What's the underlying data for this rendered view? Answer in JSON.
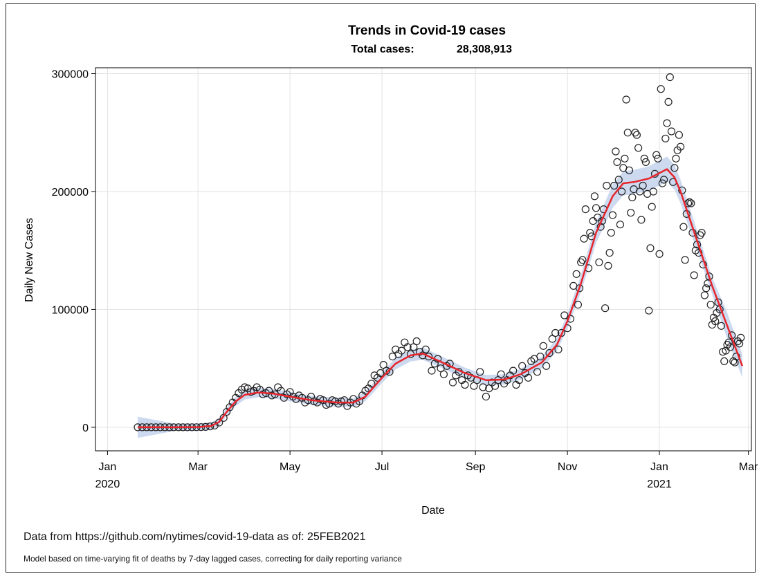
{
  "chart_data": {
    "type": "scatter",
    "title": "Trends in Covid-19 cases",
    "subtitle_label": "Total cases:",
    "subtitle_value": "28,308,913",
    "xlabel": "Date",
    "ylabel": "Daily New Cases",
    "x_ticks": [
      {
        "date": "2020-01-01",
        "label1": "Jan",
        "label2": "2020"
      },
      {
        "date": "2020-03-01",
        "label1": "Mar",
        "label2": ""
      },
      {
        "date": "2020-05-01",
        "label1": "May",
        "label2": ""
      },
      {
        "date": "2020-07-01",
        "label1": "Jul",
        "label2": ""
      },
      {
        "date": "2020-09-01",
        "label1": "Sep",
        "label2": ""
      },
      {
        "date": "2020-11-01",
        "label1": "Nov",
        "label2": ""
      },
      {
        "date": "2021-01-01",
        "label1": "Jan",
        "label2": "2021"
      },
      {
        "date": "2021-03-01",
        "label1": "Mar",
        "label2": ""
      }
    ],
    "y_ticks": [
      0,
      100000,
      200000,
      300000
    ],
    "xlim": [
      "2019-12-24",
      "2021-03-03"
    ],
    "ylim": [
      -20000,
      305000
    ],
    "grid": true,
    "points": [
      [
        "2020-01-21",
        0
      ],
      [
        "2020-01-24",
        0
      ],
      [
        "2020-01-27",
        0
      ],
      [
        "2020-01-30",
        0
      ],
      [
        "2020-02-02",
        0
      ],
      [
        "2020-02-05",
        0
      ],
      [
        "2020-02-08",
        0
      ],
      [
        "2020-02-11",
        0
      ],
      [
        "2020-02-14",
        0
      ],
      [
        "2020-02-17",
        0
      ],
      [
        "2020-02-20",
        0
      ],
      [
        "2020-02-23",
        0
      ],
      [
        "2020-02-26",
        0
      ],
      [
        "2020-02-29",
        50
      ],
      [
        "2020-03-03",
        100
      ],
      [
        "2020-03-06",
        300
      ],
      [
        "2020-03-09",
        700
      ],
      [
        "2020-03-12",
        1500
      ],
      [
        "2020-03-15",
        4000
      ],
      [
        "2020-03-18",
        8000
      ],
      [
        "2020-03-20",
        13000
      ],
      [
        "2020-03-22",
        17000
      ],
      [
        "2020-03-24",
        21000
      ],
      [
        "2020-03-26",
        25000
      ],
      [
        "2020-03-28",
        29000
      ],
      [
        "2020-03-30",
        32000
      ],
      [
        "2020-04-01",
        34000
      ],
      [
        "2020-04-03",
        33000
      ],
      [
        "2020-04-05",
        30000
      ],
      [
        "2020-04-07",
        31000
      ],
      [
        "2020-04-09",
        34000
      ],
      [
        "2020-04-11",
        32000
      ],
      [
        "2020-04-13",
        28000
      ],
      [
        "2020-04-15",
        29000
      ],
      [
        "2020-04-17",
        31000
      ],
      [
        "2020-04-19",
        27000
      ],
      [
        "2020-04-21",
        28000
      ],
      [
        "2020-04-23",
        34000
      ],
      [
        "2020-04-25",
        31000
      ],
      [
        "2020-04-27",
        25000
      ],
      [
        "2020-04-29",
        28000
      ],
      [
        "2020-05-01",
        30000
      ],
      [
        "2020-05-03",
        26000
      ],
      [
        "2020-05-05",
        24000
      ],
      [
        "2020-05-07",
        27000
      ],
      [
        "2020-05-09",
        25000
      ],
      [
        "2020-05-11",
        21000
      ],
      [
        "2020-05-13",
        23000
      ],
      [
        "2020-05-15",
        26000
      ],
      [
        "2020-05-17",
        22000
      ],
      [
        "2020-05-19",
        21000
      ],
      [
        "2020-05-21",
        24000
      ],
      [
        "2020-05-23",
        23000
      ],
      [
        "2020-05-25",
        19000
      ],
      [
        "2020-05-27",
        20000
      ],
      [
        "2020-05-29",
        23000
      ],
      [
        "2020-05-31",
        22000
      ],
      [
        "2020-06-02",
        20000
      ],
      [
        "2020-06-04",
        22000
      ],
      [
        "2020-06-06",
        23000
      ],
      [
        "2020-06-08",
        18000
      ],
      [
        "2020-06-10",
        21000
      ],
      [
        "2020-06-12",
        24000
      ],
      [
        "2020-06-14",
        20000
      ],
      [
        "2020-06-16",
        22000
      ],
      [
        "2020-06-18",
        27000
      ],
      [
        "2020-06-20",
        31000
      ],
      [
        "2020-06-22",
        33000
      ],
      [
        "2020-06-24",
        37000
      ],
      [
        "2020-06-26",
        44000
      ],
      [
        "2020-06-28",
        42000
      ],
      [
        "2020-06-30",
        46000
      ],
      [
        "2020-07-02",
        53000
      ],
      [
        "2020-07-04",
        48000
      ],
      [
        "2020-07-06",
        47000
      ],
      [
        "2020-07-08",
        60000
      ],
      [
        "2020-07-10",
        66000
      ],
      [
        "2020-07-12",
        62000
      ],
      [
        "2020-07-14",
        65000
      ],
      [
        "2020-07-16",
        72000
      ],
      [
        "2020-07-18",
        68000
      ],
      [
        "2020-07-20",
        62000
      ],
      [
        "2020-07-22",
        68000
      ],
      [
        "2020-07-24",
        73000
      ],
      [
        "2020-07-26",
        64000
      ],
      [
        "2020-07-28",
        61000
      ],
      [
        "2020-07-30",
        66000
      ],
      [
        "2020-08-01",
        60000
      ],
      [
        "2020-08-03",
        48000
      ],
      [
        "2020-08-05",
        54000
      ],
      [
        "2020-08-07",
        58000
      ],
      [
        "2020-08-09",
        50000
      ],
      [
        "2020-08-11",
        45000
      ],
      [
        "2020-08-13",
        52000
      ],
      [
        "2020-08-15",
        54000
      ],
      [
        "2020-08-17",
        38000
      ],
      [
        "2020-08-19",
        44000
      ],
      [
        "2020-08-21",
        47000
      ],
      [
        "2020-08-23",
        40000
      ],
      [
        "2020-08-25",
        36000
      ],
      [
        "2020-08-27",
        44000
      ],
      [
        "2020-08-29",
        42000
      ],
      [
        "2020-08-31",
        35000
      ],
      [
        "2020-09-02",
        40000
      ],
      [
        "2020-09-04",
        47000
      ],
      [
        "2020-09-06",
        34000
      ],
      [
        "2020-09-08",
        26000
      ],
      [
        "2020-09-10",
        33000
      ],
      [
        "2020-09-12",
        38000
      ],
      [
        "2020-09-14",
        35000
      ],
      [
        "2020-09-16",
        40000
      ],
      [
        "2020-09-18",
        45000
      ],
      [
        "2020-09-20",
        37000
      ],
      [
        "2020-09-22",
        40000
      ],
      [
        "2020-09-24",
        44000
      ],
      [
        "2020-09-26",
        48000
      ],
      [
        "2020-09-28",
        36000
      ],
      [
        "2020-09-30",
        40000
      ],
      [
        "2020-10-02",
        52000
      ],
      [
        "2020-10-04",
        46000
      ],
      [
        "2020-10-06",
        42000
      ],
      [
        "2020-10-08",
        56000
      ],
      [
        "2020-10-10",
        58000
      ],
      [
        "2020-10-12",
        47000
      ],
      [
        "2020-10-14",
        60000
      ],
      [
        "2020-10-16",
        69000
      ],
      [
        "2020-10-18",
        52000
      ],
      [
        "2020-10-20",
        63000
      ],
      [
        "2020-10-22",
        75000
      ],
      [
        "2020-10-24",
        80000
      ],
      [
        "2020-10-26",
        66000
      ],
      [
        "2020-10-28",
        80000
      ],
      [
        "2020-10-30",
        95000
      ],
      [
        "2020-11-01",
        84000
      ],
      [
        "2020-11-03",
        92000
      ],
      [
        "2020-11-05",
        120000
      ],
      [
        "2020-11-07",
        130000
      ],
      [
        "2020-11-08",
        104000
      ],
      [
        "2020-11-09",
        118000
      ],
      [
        "2020-11-10",
        140000
      ],
      [
        "2020-11-11",
        142000
      ],
      [
        "2020-11-12",
        160000
      ],
      [
        "2020-11-13",
        185000
      ],
      [
        "2020-11-15",
        135000
      ],
      [
        "2020-11-16",
        165000
      ],
      [
        "2020-11-17",
        162000
      ],
      [
        "2020-11-18",
        175000
      ],
      [
        "2020-11-19",
        196000
      ],
      [
        "2020-11-20",
        186000
      ],
      [
        "2020-11-21",
        178000
      ],
      [
        "2020-11-22",
        140000
      ],
      [
        "2020-11-23",
        170000
      ],
      [
        "2020-11-24",
        175000
      ],
      [
        "2020-11-25",
        185000
      ],
      [
        "2020-11-26",
        101000
      ],
      [
        "2020-11-27",
        205000
      ],
      [
        "2020-11-28",
        137000
      ],
      [
        "2020-11-29",
        148000
      ],
      [
        "2020-11-30",
        165000
      ],
      [
        "2020-12-01",
        180000
      ],
      [
        "2020-12-02",
        205000
      ],
      [
        "2020-12-03",
        234000
      ],
      [
        "2020-12-04",
        225000
      ],
      [
        "2020-12-05",
        210000
      ],
      [
        "2020-12-06",
        172000
      ],
      [
        "2020-12-07",
        200000
      ],
      [
        "2020-12-08",
        220000
      ],
      [
        "2020-12-09",
        228000
      ],
      [
        "2020-12-10",
        278000
      ],
      [
        "2020-12-11",
        250000
      ],
      [
        "2020-12-12",
        218000
      ],
      [
        "2020-12-13",
        182000
      ],
      [
        "2020-12-14",
        195000
      ],
      [
        "2020-12-15",
        202000
      ],
      [
        "2020-12-16",
        250000
      ],
      [
        "2020-12-17",
        248000
      ],
      [
        "2020-12-18",
        237000
      ],
      [
        "2020-12-19",
        200000
      ],
      [
        "2020-12-20",
        176000
      ],
      [
        "2020-12-21",
        205000
      ],
      [
        "2020-12-22",
        228000
      ],
      [
        "2020-12-23",
        225000
      ],
      [
        "2020-12-24",
        198000
      ],
      [
        "2020-12-25",
        99000
      ],
      [
        "2020-12-26",
        152000
      ],
      [
        "2020-12-27",
        187000
      ],
      [
        "2020-12-28",
        200000
      ],
      [
        "2020-12-29",
        215000
      ],
      [
        "2020-12-30",
        231000
      ],
      [
        "2020-12-31",
        228000
      ],
      [
        "2021-01-01",
        147000
      ],
      [
        "2021-01-02",
        287000
      ],
      [
        "2021-01-03",
        207000
      ],
      [
        "2021-01-04",
        210000
      ],
      [
        "2021-01-05",
        245000
      ],
      [
        "2021-01-06",
        258000
      ],
      [
        "2021-01-07",
        276000
      ],
      [
        "2021-01-08",
        297000
      ],
      [
        "2021-01-09",
        251000
      ],
      [
        "2021-01-10",
        208000
      ],
      [
        "2021-01-11",
        220000
      ],
      [
        "2021-01-12",
        228000
      ],
      [
        "2021-01-13",
        235000
      ],
      [
        "2021-01-14",
        248000
      ],
      [
        "2021-01-15",
        238000
      ],
      [
        "2021-01-16",
        201000
      ],
      [
        "2021-01-17",
        170000
      ],
      [
        "2021-01-18",
        142000
      ],
      [
        "2021-01-19",
        181000
      ],
      [
        "2021-01-20",
        190000
      ],
      [
        "2021-01-21",
        191000
      ],
      [
        "2021-01-22",
        190000
      ],
      [
        "2021-01-23",
        165000
      ],
      [
        "2021-01-24",
        129000
      ],
      [
        "2021-01-25",
        150000
      ],
      [
        "2021-01-26",
        155000
      ],
      [
        "2021-01-27",
        148000
      ],
      [
        "2021-01-28",
        163000
      ],
      [
        "2021-01-29",
        165000
      ],
      [
        "2021-01-30",
        138000
      ],
      [
        "2021-01-31",
        112000
      ],
      [
        "2021-02-01",
        118000
      ],
      [
        "2021-02-02",
        122000
      ],
      [
        "2021-02-03",
        128000
      ],
      [
        "2021-02-04",
        104000
      ],
      [
        "2021-02-05",
        87000
      ],
      [
        "2021-02-06",
        93000
      ],
      [
        "2021-02-07",
        90000
      ],
      [
        "2021-02-08",
        97000
      ],
      [
        "2021-02-09",
        106000
      ],
      [
        "2021-02-10",
        100000
      ],
      [
        "2021-02-11",
        86000
      ],
      [
        "2021-02-12",
        64000
      ],
      [
        "2021-02-13",
        56000
      ],
      [
        "2021-02-14",
        65000
      ],
      [
        "2021-02-15",
        70000
      ],
      [
        "2021-02-16",
        72000
      ],
      [
        "2021-02-17",
        68000
      ],
      [
        "2021-02-18",
        78000
      ],
      [
        "2021-02-19",
        56000
      ],
      [
        "2021-02-20",
        55000
      ],
      [
        "2021-02-21",
        60000
      ],
      [
        "2021-02-22",
        73000
      ],
      [
        "2021-02-23",
        71000
      ],
      [
        "2021-02-24",
        76000
      ]
    ],
    "fit": [
      [
        "2020-01-21",
        0
      ],
      [
        "2020-02-15",
        0
      ],
      [
        "2020-03-01",
        200
      ],
      [
        "2020-03-10",
        1200
      ],
      [
        "2020-03-15",
        4500
      ],
      [
        "2020-03-20",
        13000
      ],
      [
        "2020-03-26",
        22000
      ],
      [
        "2020-04-01",
        27500
      ],
      [
        "2020-04-10",
        29500
      ],
      [
        "2020-04-20",
        28500
      ],
      [
        "2020-05-01",
        26000
      ],
      [
        "2020-05-15",
        23000
      ],
      [
        "2020-06-01",
        21000
      ],
      [
        "2020-06-12",
        21000
      ],
      [
        "2020-06-20",
        26000
      ],
      [
        "2020-07-01",
        42000
      ],
      [
        "2020-07-10",
        54000
      ],
      [
        "2020-07-20",
        61000
      ],
      [
        "2020-07-28",
        62500
      ],
      [
        "2020-08-10",
        55000
      ],
      [
        "2020-08-25",
        46000
      ],
      [
        "2020-09-08",
        40000
      ],
      [
        "2020-09-20",
        40500
      ],
      [
        "2020-10-01",
        45000
      ],
      [
        "2020-10-15",
        55000
      ],
      [
        "2020-10-25",
        70000
      ],
      [
        "2020-11-01",
        90000
      ],
      [
        "2020-11-10",
        122000
      ],
      [
        "2020-11-20",
        165000
      ],
      [
        "2020-12-01",
        196000
      ],
      [
        "2020-12-08",
        207000
      ],
      [
        "2020-12-15",
        208000
      ],
      [
        "2020-12-25",
        211000
      ],
      [
        "2021-01-06",
        219000
      ],
      [
        "2021-01-11",
        212000
      ],
      [
        "2021-01-15",
        200000
      ],
      [
        "2021-01-25",
        162000
      ],
      [
        "2021-02-05",
        120000
      ],
      [
        "2021-02-15",
        86000
      ],
      [
        "2021-02-25",
        52000
      ]
    ],
    "colors": {
      "fit_line": "#e8242b",
      "band": "#c3d2ec",
      "marker": "#222222",
      "grid": "#e2e2e2"
    }
  },
  "footer": {
    "source_note": "Data from https://github.com/nytimes/covid-19-data as of: 25FEB2021",
    "model_note": "Model based on time-varying fit of deaths by 7-day lagged cases, correcting for daily reporting variance"
  }
}
